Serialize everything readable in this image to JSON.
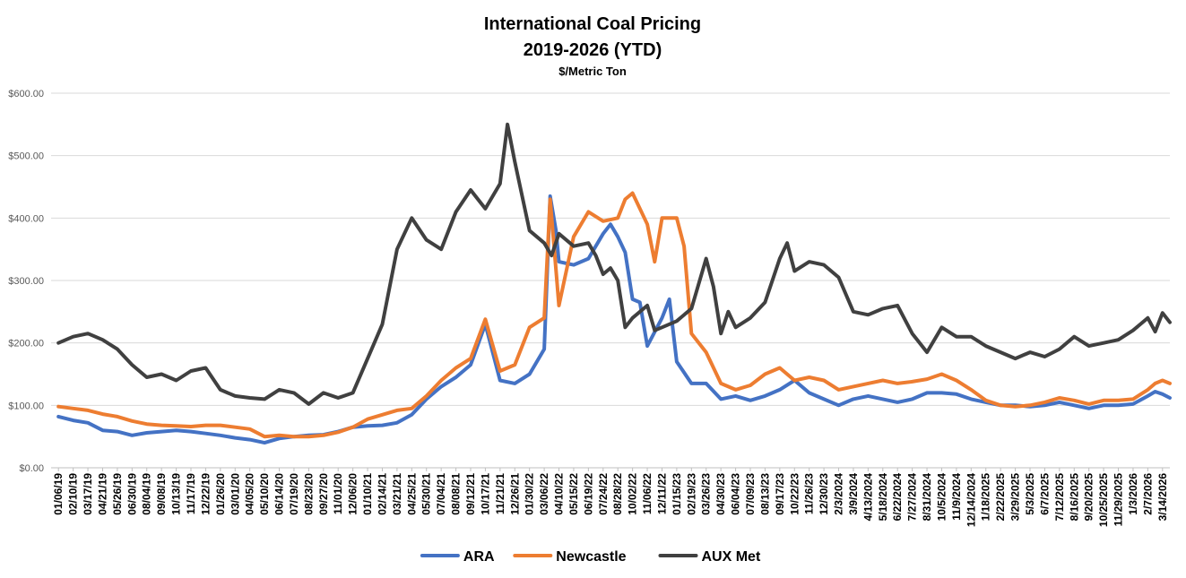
{
  "chart_data": {
    "type": "line",
    "title": "International Coal Pricing",
    "subtitle": "2019-2026 (YTD)",
    "unit_label": "$/Metric Ton",
    "ylim": [
      0,
      600
    ],
    "y_ticks": [
      "$0.00",
      "$100.00",
      "$200.00",
      "$300.00",
      "$400.00",
      "$500.00",
      "$600.00"
    ],
    "x_tick_labels": [
      "01/06/19",
      "02/10/19",
      "03/17/19",
      "04/21/19",
      "05/26/19",
      "06/30/19",
      "08/04/19",
      "09/08/19",
      "10/13/19",
      "11/17/19",
      "12/22/19",
      "01/26/20",
      "03/01/20",
      "04/05/20",
      "05/10/20",
      "06/14/20",
      "07/19/20",
      "08/23/20",
      "09/27/20",
      "11/01/20",
      "12/06/20",
      "01/10/21",
      "02/14/21",
      "03/21/21",
      "04/25/21",
      "05/30/21",
      "07/04/21",
      "08/08/21",
      "09/12/21",
      "10/17/21",
      "11/21/21",
      "12/26/21",
      "01/30/22",
      "03/06/22",
      "04/10/22",
      "05/15/22",
      "06/19/22",
      "07/24/22",
      "08/28/22",
      "10/02/22",
      "11/06/22",
      "12/11/22",
      "01/15/23",
      "02/19/23",
      "03/26/23",
      "04/30/23",
      "06/04/23",
      "07/09/23",
      "08/13/23",
      "09/17/23",
      "10/22/23",
      "11/26/23",
      "12/30/23",
      "2/3/2024",
      "3/9/2024",
      "4/13/2024",
      "5/18/2024",
      "6/22/2024",
      "7/27/2024",
      "8/31/2024",
      "10/5/2024",
      "11/9/2024",
      "12/14/2024",
      "1/18/2025",
      "2/22/2025",
      "3/29/2025",
      "5/3/2025",
      "6/7/2025",
      "7/12/2025",
      "8/16/2025",
      "9/20/2025",
      "10/25/2025",
      "11/29/2025",
      "1/3/2026",
      "2/7/2026",
      "3/14/2026"
    ],
    "legend_position": "bottom",
    "grid": true,
    "series": [
      {
        "name": "ARA",
        "color": "#4472c4",
        "points": [
          [
            0,
            82
          ],
          [
            1,
            76
          ],
          [
            2,
            72
          ],
          [
            3,
            60
          ],
          [
            4,
            58
          ],
          [
            5,
            52
          ],
          [
            6,
            56
          ],
          [
            7,
            58
          ],
          [
            8,
            60
          ],
          [
            9,
            58
          ],
          [
            10,
            55
          ],
          [
            11,
            52
          ],
          [
            12,
            48
          ],
          [
            13,
            45
          ],
          [
            14,
            40
          ],
          [
            15,
            47
          ],
          [
            16,
            50
          ],
          [
            17,
            52
          ],
          [
            18,
            53
          ],
          [
            19,
            58
          ],
          [
            20,
            65
          ],
          [
            21,
            67
          ],
          [
            22,
            68
          ],
          [
            23,
            72
          ],
          [
            24,
            85
          ],
          [
            25,
            110
          ],
          [
            26,
            130
          ],
          [
            27,
            145
          ],
          [
            28,
            165
          ],
          [
            29,
            230
          ],
          [
            30,
            140
          ],
          [
            31,
            135
          ],
          [
            32,
            150
          ],
          [
            33,
            190
          ],
          [
            33.4,
            435
          ],
          [
            33.8,
            380
          ],
          [
            34,
            330
          ],
          [
            35,
            325
          ],
          [
            36,
            335
          ],
          [
            37,
            375
          ],
          [
            37.5,
            390
          ],
          [
            38,
            370
          ],
          [
            38.5,
            345
          ],
          [
            39,
            270
          ],
          [
            39.5,
            265
          ],
          [
            40,
            195
          ],
          [
            41,
            240
          ],
          [
            41.5,
            270
          ],
          [
            42,
            170
          ],
          [
            43,
            135
          ],
          [
            44,
            135
          ],
          [
            45,
            110
          ],
          [
            46,
            115
          ],
          [
            47,
            108
          ],
          [
            48,
            115
          ],
          [
            49,
            125
          ],
          [
            50,
            140
          ],
          [
            51,
            120
          ],
          [
            52,
            110
          ],
          [
            53,
            100
          ],
          [
            54,
            110
          ],
          [
            55,
            115
          ],
          [
            56,
            110
          ],
          [
            57,
            105
          ],
          [
            58,
            110
          ],
          [
            59,
            120
          ],
          [
            60,
            120
          ],
          [
            61,
            118
          ],
          [
            62,
            110
          ],
          [
            63,
            105
          ],
          [
            64,
            100
          ],
          [
            65,
            100
          ],
          [
            66,
            98
          ],
          [
            67,
            100
          ],
          [
            68,
            105
          ],
          [
            69,
            100
          ],
          [
            70,
            95
          ],
          [
            71,
            100
          ],
          [
            72,
            100
          ],
          [
            73,
            102
          ],
          [
            74,
            115
          ],
          [
            74.5,
            122
          ],
          [
            75,
            118
          ],
          [
            75.5,
            112
          ]
        ]
      },
      {
        "name": "Newcastle",
        "color": "#ed7d31",
        "points": [
          [
            0,
            98
          ],
          [
            1,
            95
          ],
          [
            2,
            92
          ],
          [
            3,
            86
          ],
          [
            4,
            82
          ],
          [
            5,
            75
          ],
          [
            6,
            70
          ],
          [
            7,
            68
          ],
          [
            8,
            67
          ],
          [
            9,
            66
          ],
          [
            10,
            68
          ],
          [
            11,
            68
          ],
          [
            12,
            65
          ],
          [
            13,
            62
          ],
          [
            14,
            50
          ],
          [
            15,
            52
          ],
          [
            16,
            50
          ],
          [
            17,
            50
          ],
          [
            18,
            52
          ],
          [
            19,
            57
          ],
          [
            20,
            65
          ],
          [
            21,
            78
          ],
          [
            22,
            85
          ],
          [
            23,
            92
          ],
          [
            24,
            95
          ],
          [
            25,
            115
          ],
          [
            26,
            140
          ],
          [
            27,
            160
          ],
          [
            28,
            175
          ],
          [
            29,
            238
          ],
          [
            30,
            155
          ],
          [
            31,
            165
          ],
          [
            32,
            225
          ],
          [
            33,
            240
          ],
          [
            33.4,
            430
          ],
          [
            34,
            260
          ],
          [
            35,
            370
          ],
          [
            36,
            410
          ],
          [
            37,
            395
          ],
          [
            38,
            400
          ],
          [
            38.5,
            430
          ],
          [
            39,
            440
          ],
          [
            40,
            390
          ],
          [
            40.5,
            330
          ],
          [
            41,
            400
          ],
          [
            42,
            400
          ],
          [
            42.5,
            355
          ],
          [
            43,
            215
          ],
          [
            44,
            185
          ],
          [
            45,
            135
          ],
          [
            46,
            125
          ],
          [
            47,
            132
          ],
          [
            48,
            150
          ],
          [
            49,
            160
          ],
          [
            50,
            140
          ],
          [
            51,
            145
          ],
          [
            52,
            140
          ],
          [
            53,
            125
          ],
          [
            54,
            130
          ],
          [
            55,
            135
          ],
          [
            56,
            140
          ],
          [
            57,
            135
          ],
          [
            58,
            138
          ],
          [
            59,
            142
          ],
          [
            60,
            150
          ],
          [
            61,
            140
          ],
          [
            62,
            125
          ],
          [
            63,
            108
          ],
          [
            64,
            100
          ],
          [
            65,
            98
          ],
          [
            66,
            100
          ],
          [
            67,
            105
          ],
          [
            68,
            112
          ],
          [
            69,
            108
          ],
          [
            70,
            102
          ],
          [
            71,
            108
          ],
          [
            72,
            108
          ],
          [
            73,
            110
          ],
          [
            74,
            125
          ],
          [
            74.5,
            135
          ],
          [
            75,
            140
          ],
          [
            75.5,
            135
          ]
        ]
      },
      {
        "name": "AUX Met",
        "color": "#404040",
        "points": [
          [
            0,
            200
          ],
          [
            1,
            210
          ],
          [
            2,
            215
          ],
          [
            3,
            205
          ],
          [
            4,
            190
          ],
          [
            5,
            165
          ],
          [
            6,
            145
          ],
          [
            7,
            150
          ],
          [
            8,
            140
          ],
          [
            9,
            155
          ],
          [
            10,
            160
          ],
          [
            11,
            125
          ],
          [
            12,
            115
          ],
          [
            13,
            112
          ],
          [
            14,
            110
          ],
          [
            15,
            125
          ],
          [
            16,
            120
          ],
          [
            17,
            102
          ],
          [
            18,
            120
          ],
          [
            19,
            112
          ],
          [
            20,
            120
          ],
          [
            21,
            175
          ],
          [
            22,
            230
          ],
          [
            23,
            350
          ],
          [
            24,
            400
          ],
          [
            25,
            365
          ],
          [
            26,
            350
          ],
          [
            27,
            410
          ],
          [
            28,
            445
          ],
          [
            29,
            415
          ],
          [
            30,
            455
          ],
          [
            30.5,
            550
          ],
          [
            31,
            490
          ],
          [
            32,
            380
          ],
          [
            33,
            360
          ],
          [
            33.5,
            340
          ],
          [
            34,
            375
          ],
          [
            35,
            355
          ],
          [
            36,
            360
          ],
          [
            36.5,
            340
          ],
          [
            37,
            310
          ],
          [
            37.5,
            320
          ],
          [
            38,
            300
          ],
          [
            38.5,
            225
          ],
          [
            39,
            240
          ],
          [
            40,
            260
          ],
          [
            40.5,
            220
          ],
          [
            41,
            225
          ],
          [
            42,
            235
          ],
          [
            43,
            255
          ],
          [
            44,
            335
          ],
          [
            44.5,
            290
          ],
          [
            45,
            215
          ],
          [
            45.5,
            250
          ],
          [
            46,
            225
          ],
          [
            47,
            240
          ],
          [
            48,
            265
          ],
          [
            49,
            335
          ],
          [
            49.5,
            360
          ],
          [
            50,
            315
          ],
          [
            51,
            330
          ],
          [
            52,
            325
          ],
          [
            53,
            305
          ],
          [
            54,
            250
          ],
          [
            55,
            245
          ],
          [
            56,
            255
          ],
          [
            57,
            260
          ],
          [
            58,
            215
          ],
          [
            59,
            185
          ],
          [
            60,
            225
          ],
          [
            61,
            210
          ],
          [
            62,
            210
          ],
          [
            63,
            195
          ],
          [
            64,
            185
          ],
          [
            65,
            175
          ],
          [
            66,
            185
          ],
          [
            67,
            178
          ],
          [
            68,
            190
          ],
          [
            69,
            210
          ],
          [
            70,
            195
          ],
          [
            71,
            200
          ],
          [
            72,
            205
          ],
          [
            73,
            220
          ],
          [
            74,
            240
          ],
          [
            74.5,
            218
          ],
          [
            75,
            248
          ],
          [
            75.5,
            233
          ]
        ]
      }
    ]
  }
}
